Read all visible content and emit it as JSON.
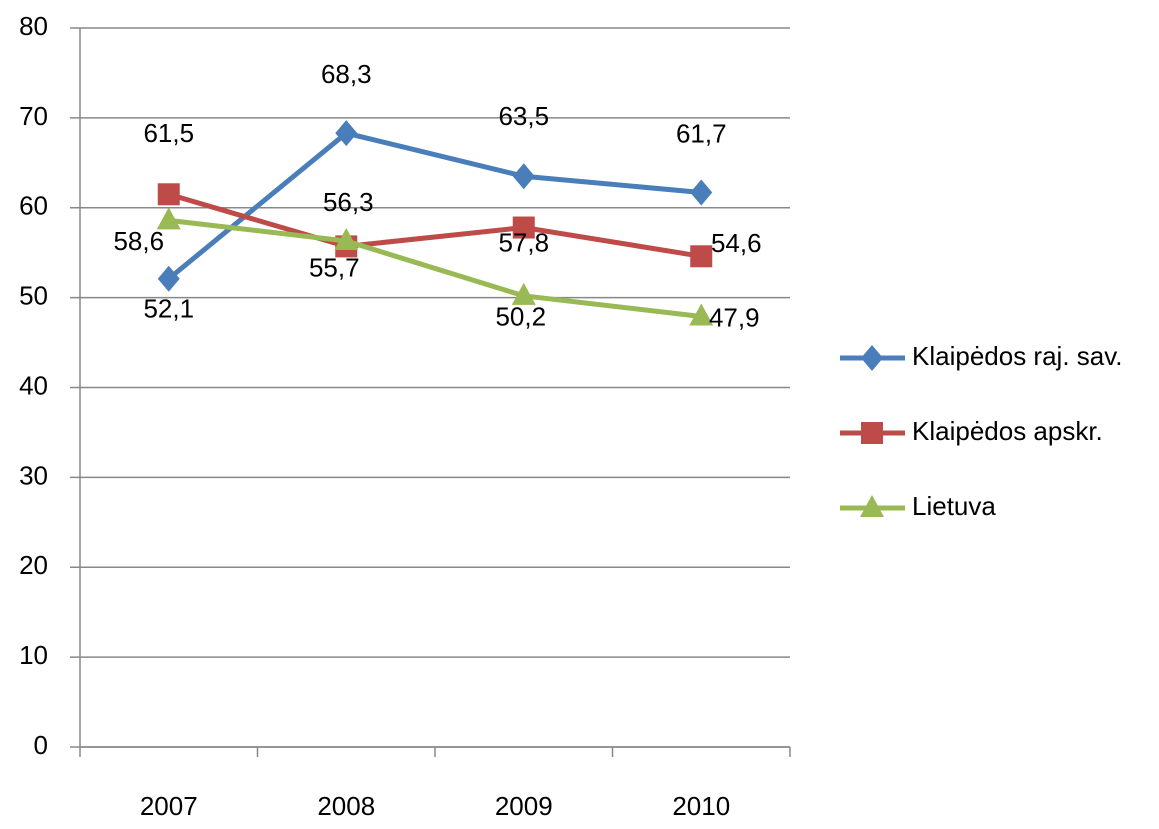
{
  "chart_data": {
    "type": "line",
    "categories": [
      "2007",
      "2008",
      "2009",
      "2010"
    ],
    "series": [
      {
        "name": "Klaipėdos raj. sav.",
        "color": "#4a7ebb",
        "values": [
          52.1,
          68.3,
          63.5,
          61.7
        ],
        "value_labels": [
          "52,1",
          "68,3",
          "63,5",
          "61,7"
        ]
      },
      {
        "name": "Klaipėdos apskr.",
        "color": "#be4b48",
        "values": [
          61.5,
          55.7,
          57.8,
          54.6
        ],
        "value_labels": [
          "61,5",
          "55,7",
          "57,8",
          "54,6"
        ]
      },
      {
        "name": "Lietuva",
        "color": "#98b954",
        "values": [
          58.6,
          56.3,
          50.2,
          47.9
        ],
        "value_labels": [
          "58,6",
          "56,3",
          "50,2",
          "47,9"
        ]
      }
    ],
    "ylim": [
      0,
      80
    ],
    "yticks": [
      0,
      10,
      20,
      30,
      40,
      50,
      60,
      70,
      80
    ],
    "grid": true,
    "legend": "right"
  }
}
